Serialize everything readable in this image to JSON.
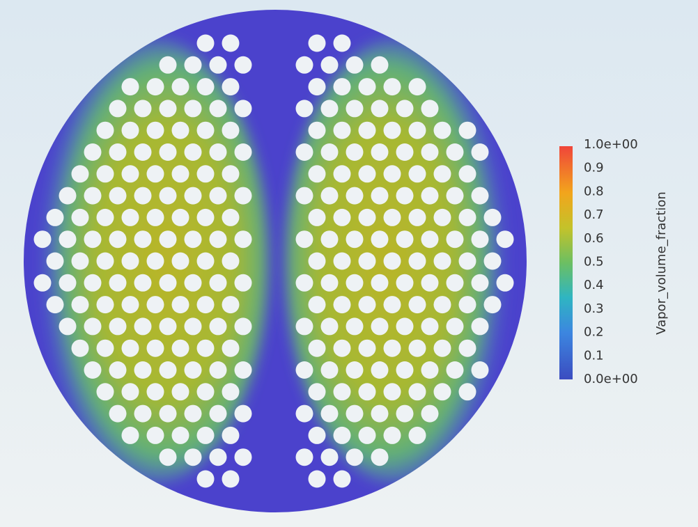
{
  "colorbar": {
    "title": "Vapor_volume_fraction",
    "tick_labels": [
      "1.0e+00",
      "0.9",
      "0.8",
      "0.7",
      "0.6",
      "0.5",
      "0.4",
      "0.3",
      "0.2",
      "0.1",
      "0.0e+00"
    ]
  }
}
